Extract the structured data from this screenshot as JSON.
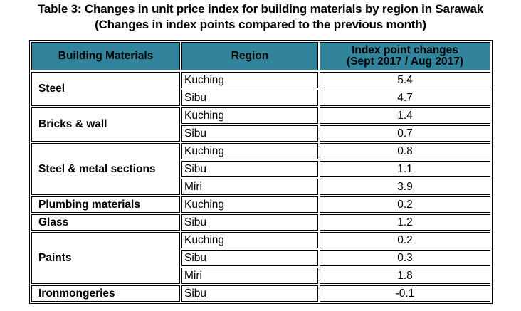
{
  "title": "Table 3: Changes in unit price index for building materials by region in Sarawak",
  "subtitle": "(Changes in index points compared to the previous month)",
  "header_color": "#31849b",
  "columns": [
    "Building Materials",
    "Region",
    "Index point changes",
    "(Sept 2017 / Aug 2017)"
  ],
  "groups": [
    {
      "material": "Steel",
      "rows": [
        {
          "region": "Kuching",
          "value": "5.4"
        },
        {
          "region": "Sibu",
          "value": "4.7"
        }
      ]
    },
    {
      "material": "Bricks & wall",
      "rows": [
        {
          "region": "Kuching",
          "value": "1.4"
        },
        {
          "region": "Sibu",
          "value": "0.7"
        }
      ]
    },
    {
      "material": "Steel & metal sections",
      "rows": [
        {
          "region": "Kuching",
          "value": "0.8"
        },
        {
          "region": "Sibu",
          "value": "1.1"
        },
        {
          "region": "Miri",
          "value": "3.9"
        }
      ]
    },
    {
      "material": "Plumbing materials",
      "rows": [
        {
          "region": "Kuching",
          "value": "0.2"
        }
      ]
    },
    {
      "material": "Glass",
      "rows": [
        {
          "region": "Sibu",
          "value": "1.2"
        }
      ]
    },
    {
      "material": "Paints",
      "rows": [
        {
          "region": "Kuching",
          "value": "0.2"
        },
        {
          "region": "Sibu",
          "value": "0.3"
        },
        {
          "region": "Miri",
          "value": "1.8"
        }
      ]
    },
    {
      "material": "Ironmongeries",
      "rows": [
        {
          "region": "Sibu",
          "value": "-0.1"
        }
      ]
    }
  ]
}
